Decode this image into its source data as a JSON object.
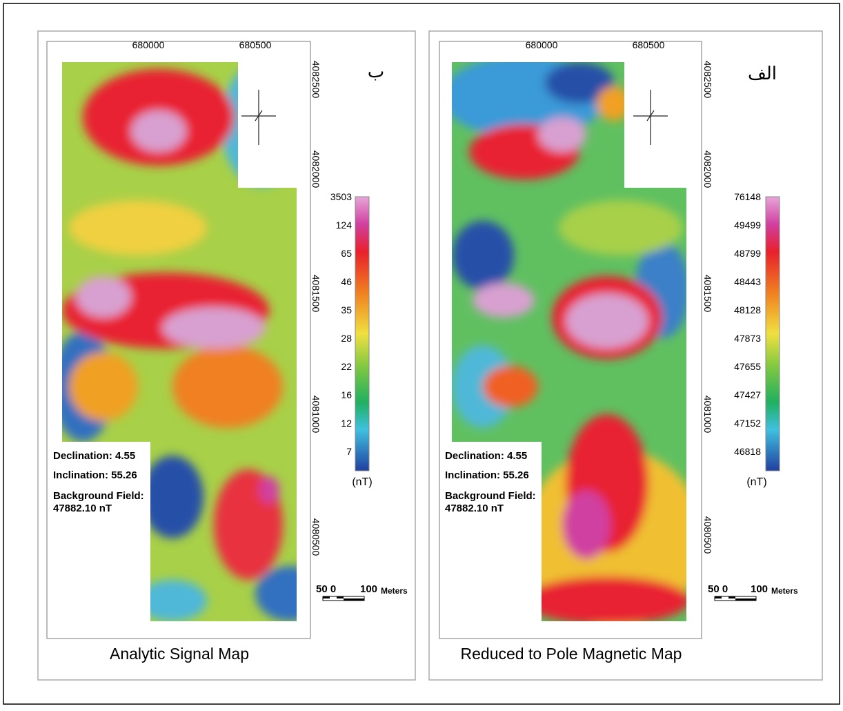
{
  "panels": [
    {
      "letter": "ب",
      "title": "Analytic Signal Map",
      "x_ticks": [
        "680000",
        "680500"
      ],
      "y_ticks": [
        "4082500",
        "4082000",
        "4081500",
        "4081000",
        "4080500"
      ],
      "legend": {
        "labels": [
          "3503",
          "124",
          "65",
          "46",
          "35",
          "28",
          "22",
          "16",
          "12",
          "7"
        ],
        "unit": "(nT)"
      },
      "info": {
        "declination": "Declination: 4.55",
        "inclination": "Inclination: 55.26",
        "background": "Background Field:",
        "background_value": "47882.10 nT"
      },
      "scale": {
        "left": "50 0",
        "right": "100",
        "unit": "Meters"
      }
    },
    {
      "letter": "الف",
      "title": "Reduced to Pole Magnetic Map",
      "x_ticks": [
        "680000",
        "680500"
      ],
      "y_ticks": [
        "4082500",
        "4082000",
        "4081500",
        "4081000",
        "4080500"
      ],
      "legend": {
        "labels": [
          "76148",
          "49499",
          "48799",
          "48443",
          "48128",
          "47873",
          "47655",
          "47427",
          "47152",
          "46818"
        ],
        "unit": "(nT)"
      },
      "info": {
        "declination": "Declination: 4.55",
        "inclination": "Inclination: 55.26",
        "background": "Background Field:",
        "background_value": "47882.10 nT"
      },
      "scale": {
        "left": "50 0",
        "right": "100",
        "unit": "Meters"
      }
    }
  ]
}
